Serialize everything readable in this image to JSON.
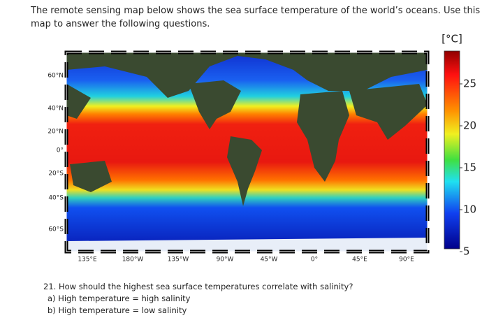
{
  "intro": {
    "lines": [
      "The remote sensing map below shows the sea surface temperature of the world’s oceans. Use this",
      "map to answer the following questions."
    ]
  },
  "map": {
    "latitude_labels": [
      "60°N",
      "40°N",
      "20°N",
      "0°",
      "20°S",
      "40°S",
      "60°S"
    ],
    "longitude_labels": [
      "135°E",
      "180°W",
      "135°W",
      "90°W",
      "45°W",
      "0°",
      "45°E",
      "90°E"
    ]
  },
  "colorbar": {
    "unit": "[°C]",
    "ticks": [
      "25",
      "20",
      "15",
      "10",
      "5"
    ]
  },
  "question": {
    "text": "21. How should the highest sea surface temperatures correlate with salinity?",
    "options": [
      "a)  High temperature = high salinity",
      "b)  High temperature = low salinity"
    ]
  }
}
